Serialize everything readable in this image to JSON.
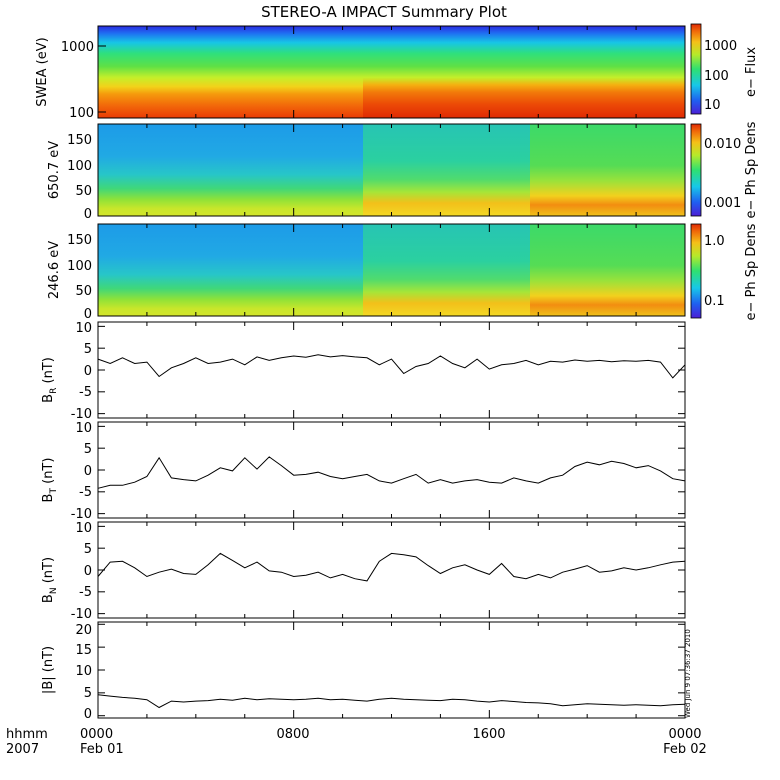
{
  "page": {
    "title": "STEREO-A IMPACT Summary Plot"
  },
  "x_axis": {
    "unit_label_1": "hhmm",
    "unit_label_2": "2007",
    "ticks": [
      {
        "hour": 0,
        "label": "0000",
        "sub": "Feb 01"
      },
      {
        "hour": 8,
        "label": "0800",
        "sub": ""
      },
      {
        "hour": 16,
        "label": "1600",
        "sub": ""
      },
      {
        "hour": 24,
        "label": "0000",
        "sub": "Feb 02"
      }
    ],
    "range_hours": [
      0,
      24
    ]
  },
  "timestamp": "Wed Jun  9 07:36:37 2010",
  "panels": [
    {
      "id": "swea",
      "ylabel": "SWEA (eV)",
      "cbar_label": "e− Flux",
      "yticks": [
        "1000",
        "100"
      ],
      "cbar_ticks": [
        "1000",
        "100",
        "10"
      ]
    },
    {
      "id": "pad650",
      "ylabel": "650.7 eV",
      "cbar_label": "e− Ph Sp Dens",
      "yticks": [
        "150",
        "100",
        "50",
        "0"
      ],
      "cbar_ticks": [
        "0.010",
        "0.001"
      ]
    },
    {
      "id": "pad246",
      "ylabel": "246.6 eV",
      "cbar_label": "e− Ph Sp Dens",
      "yticks": [
        "150",
        "100",
        "50",
        "0"
      ],
      "cbar_ticks": [
        "1.0",
        "0.1"
      ]
    },
    {
      "id": "br",
      "ylabel": "B",
      "ysub": "R",
      "yunit": "(nT)",
      "yticks": [
        "10",
        "5",
        "0",
        "-5",
        "-10"
      ]
    },
    {
      "id": "bt",
      "ylabel": "B",
      "ysub": "T",
      "yunit": "(nT)",
      "yticks": [
        "10",
        "5",
        "0",
        "-5",
        "-10"
      ]
    },
    {
      "id": "bn",
      "ylabel": "B",
      "ysub": "N",
      "yunit": "(nT)",
      "yticks": [
        "10",
        "5",
        "0",
        "-5",
        "-10"
      ]
    },
    {
      "id": "bmag",
      "ylabel": "|B| (nT)",
      "yticks": [
        "20",
        "15",
        "10",
        "5",
        "0"
      ]
    }
  ],
  "chart_data": [
    {
      "type": "heatmap",
      "title": "STEREO-A IMPACT Summary Plot",
      "ylabel": "SWEA (eV)",
      "yscale": "log",
      "ylim": [
        95,
        1600
      ],
      "colorbar": {
        "label": "e− Flux",
        "scale": "log",
        "range": [
          5,
          5000
        ],
        "ticks": [
          10,
          100,
          1000
        ]
      },
      "xlim_hours": [
        0,
        24
      ],
      "regimes": [
        {
          "from_hour": 0,
          "to_hour": 11,
          "low_energy_level": "medium"
        },
        {
          "from_hour": 11,
          "to_hour": 17.5,
          "low_energy_level": "high"
        },
        {
          "from_hour": 17.5,
          "to_hour": 24,
          "low_energy_level": "high"
        }
      ]
    },
    {
      "type": "heatmap",
      "ylabel": "650.7 eV",
      "ylim": [
        0,
        180
      ],
      "colorbar": {
        "label": "e− Ph Sp Dens",
        "scale": "log",
        "range": [
          0.0007,
          0.02
        ],
        "ticks": [
          0.001,
          0.01
        ]
      },
      "xlim_hours": [
        0,
        24
      ],
      "segments": [
        {
          "from_hour": 0,
          "to_hour": 10.5,
          "high_pitch_level": "low"
        },
        {
          "from_hour": 10.5,
          "to_hour": 17.5,
          "high_pitch_level": "medium"
        },
        {
          "from_hour": 17.5,
          "to_hour": 24,
          "high_pitch_level": "high"
        }
      ]
    },
    {
      "type": "heatmap",
      "ylabel": "246.6 eV",
      "ylim": [
        0,
        180
      ],
      "colorbar": {
        "label": "e− Ph Sp Dens",
        "scale": "log",
        "range": [
          0.06,
          1.3
        ],
        "ticks": [
          0.1,
          1.0
        ]
      },
      "xlim_hours": [
        0,
        24
      ],
      "segments": [
        {
          "from_hour": 0,
          "to_hour": 10.5,
          "high_pitch_level": "low"
        },
        {
          "from_hour": 10.5,
          "to_hour": 17.5,
          "high_pitch_level": "medium"
        },
        {
          "from_hour": 17.5,
          "to_hour": 24,
          "high_pitch_level": "high"
        }
      ]
    },
    {
      "type": "line",
      "ylabel": "B_R (nT)",
      "ylim": [
        -11,
        11
      ],
      "x_hours": [
        0,
        0.5,
        1,
        1.5,
        2,
        2.5,
        3,
        3.5,
        4,
        4.5,
        5,
        5.5,
        6,
        6.5,
        7,
        7.5,
        8,
        8.5,
        9,
        9.5,
        10,
        10.5,
        11,
        11.5,
        12,
        12.5,
        13,
        13.5,
        14,
        14.5,
        15,
        15.5,
        16,
        16.5,
        17,
        17.5,
        18,
        18.5,
        19,
        19.5,
        20,
        20.5,
        21,
        21.5,
        22,
        22.5,
        23,
        23.5,
        24
      ],
      "y": [
        2.5,
        1.5,
        2.8,
        1.5,
        1.8,
        -1.5,
        0.5,
        1.5,
        2.8,
        1.5,
        1.8,
        2.5,
        1.2,
        3.0,
        2.2,
        2.8,
        3.2,
        2.9,
        3.5,
        3.0,
        3.3,
        3.0,
        2.8,
        1.2,
        2.5,
        -0.8,
        0.8,
        1.5,
        3.2,
        1.5,
        0.5,
        2.5,
        0.2,
        1.2,
        1.5,
        2.2,
        1.2,
        2.0,
        1.8,
        2.3,
        2.0,
        2.2,
        1.9,
        2.1,
        2.0,
        2.2,
        1.8,
        -1.8,
        1.2
      ]
    },
    {
      "type": "line",
      "ylabel": "B_T (nT)",
      "ylim": [
        -11,
        11
      ],
      "x_hours": [
        0,
        0.5,
        1,
        1.5,
        2,
        2.5,
        3,
        3.5,
        4,
        4.5,
        5,
        5.5,
        6,
        6.5,
        7,
        7.5,
        8,
        8.5,
        9,
        9.5,
        10,
        10.5,
        11,
        11.5,
        12,
        12.5,
        13,
        13.5,
        14,
        14.5,
        15,
        15.5,
        16,
        16.5,
        17,
        17.5,
        18,
        18.5,
        19,
        19.5,
        20,
        20.5,
        21,
        21.5,
        22,
        22.5,
        23,
        23.5,
        24
      ],
      "y": [
        -4.2,
        -3.5,
        -3.5,
        -2.8,
        -1.5,
        2.8,
        -1.8,
        -2.2,
        -2.5,
        -1.2,
        0.5,
        -0.2,
        2.8,
        0.2,
        3.0,
        1.0,
        -1.2,
        -1.0,
        -0.5,
        -1.5,
        -2.0,
        -1.5,
        -1.0,
        -2.5,
        -3.0,
        -2.0,
        -1.0,
        -3.0,
        -2.2,
        -3.0,
        -2.5,
        -2.2,
        -2.8,
        -3.0,
        -1.8,
        -2.5,
        -3.0,
        -1.8,
        -1.2,
        0.8,
        1.8,
        1.2,
        2.0,
        1.5,
        0.5,
        1.0,
        -0.2,
        -2.0,
        -2.5
      ]
    },
    {
      "type": "line",
      "ylabel": "B_N (nT)",
      "ylim": [
        -11,
        11
      ],
      "x_hours": [
        0,
        0.5,
        1,
        1.5,
        2,
        2.5,
        3,
        3.5,
        4,
        4.5,
        5,
        5.5,
        6,
        6.5,
        7,
        7.5,
        8,
        8.5,
        9,
        9.5,
        10,
        10.5,
        11,
        11.5,
        12,
        12.5,
        13,
        13.5,
        14,
        14.5,
        15,
        15.5,
        16,
        16.5,
        17,
        17.5,
        18,
        18.5,
        19,
        19.5,
        20,
        20.5,
        21,
        21.5,
        22,
        22.5,
        23,
        23.5,
        24
      ],
      "y": [
        -1.5,
        1.8,
        2.0,
        0.5,
        -1.5,
        -0.5,
        0.2,
        -0.8,
        -1.0,
        1.2,
        3.8,
        2.2,
        0.5,
        1.8,
        -0.2,
        -0.5,
        -1.5,
        -1.2,
        -0.5,
        -1.8,
        -1.0,
        -2.0,
        -2.5,
        2.0,
        3.8,
        3.5,
        3.0,
        1.0,
        -0.8,
        0.5,
        1.2,
        0.0,
        -1.0,
        1.5,
        -1.5,
        -2.0,
        -1.0,
        -1.8,
        -0.5,
        0.2,
        1.0,
        -0.5,
        -0.2,
        0.5,
        0.0,
        0.5,
        1.2,
        1.8,
        2.0
      ]
    },
    {
      "type": "line",
      "ylabel": "|B| (nT)",
      "ylim": [
        -0.5,
        20.5
      ],
      "x_hours": [
        0,
        0.5,
        1,
        1.5,
        2,
        2.5,
        3,
        3.5,
        4,
        4.5,
        5,
        5.5,
        6,
        6.5,
        7,
        7.5,
        8,
        8.5,
        9,
        9.5,
        10,
        10.5,
        11,
        11.5,
        12,
        12.5,
        13,
        13.5,
        14,
        14.5,
        15,
        15.5,
        16,
        16.5,
        17,
        17.5,
        18,
        18.5,
        19,
        19.5,
        20,
        20.5,
        21,
        21.5,
        22,
        22.5,
        23,
        23.5,
        24
      ],
      "y": [
        4.6,
        4.3,
        4.0,
        3.8,
        3.5,
        1.8,
        3.2,
        3.0,
        3.2,
        3.3,
        3.6,
        3.4,
        3.8,
        3.5,
        3.7,
        3.6,
        3.5,
        3.6,
        3.8,
        3.5,
        3.6,
        3.4,
        3.2,
        3.6,
        3.8,
        3.6,
        3.5,
        3.4,
        3.3,
        3.6,
        3.5,
        3.2,
        3.0,
        3.3,
        3.1,
        2.9,
        2.8,
        2.6,
        2.2,
        2.4,
        2.6,
        2.5,
        2.4,
        2.3,
        2.4,
        2.3,
        2.2,
        2.4,
        2.5
      ]
    }
  ]
}
